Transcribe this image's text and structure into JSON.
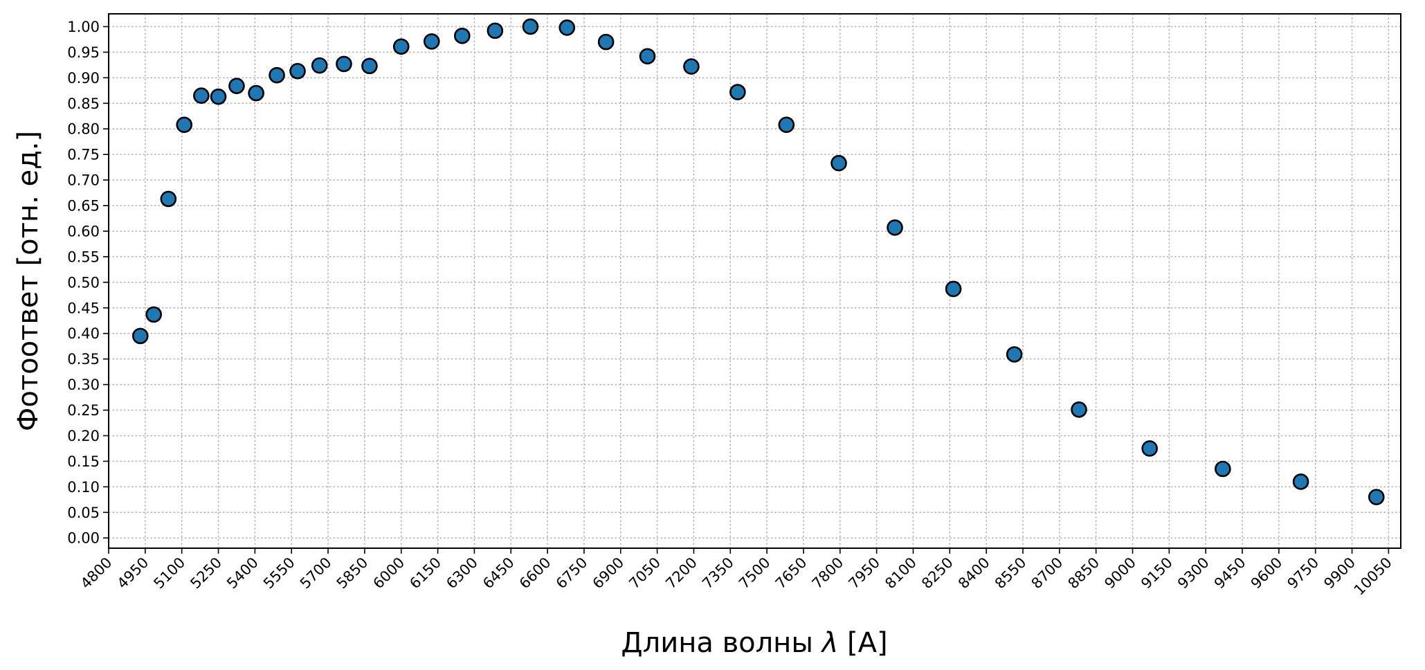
{
  "chart_data": {
    "type": "scatter",
    "title": "",
    "xlabel": "Длина волны",
    "xlabel_symbol": "λ",
    "xlabel_unit": "[A]",
    "ylabel": "Фотоответ [отн. ед.]",
    "xlim": [
      4800,
      10100
    ],
    "ylim": [
      -0.02,
      1.025
    ],
    "xticks": [
      4800,
      4950,
      5100,
      5250,
      5400,
      5550,
      5700,
      5850,
      6000,
      6150,
      6300,
      6450,
      6600,
      6750,
      6900,
      7050,
      7200,
      7350,
      7500,
      7650,
      7800,
      7950,
      8100,
      8250,
      8400,
      8550,
      8700,
      8850,
      9000,
      9150,
      9300,
      9450,
      9600,
      9750,
      9900,
      10050
    ],
    "xtick_labels": [
      "4800",
      "4950",
      "5100",
      "5250",
      "5400",
      "5550",
      "5700",
      "5850",
      "6000",
      "6150",
      "6300",
      "6450",
      "6600",
      "6750",
      "6900",
      "7050",
      "7200",
      "7350",
      "7500",
      "7650",
      "7800",
      "7950",
      "8100",
      "8250",
      "8400",
      "8550",
      "8700",
      "8850",
      "9000",
      "9150",
      "9300",
      "9450",
      "9600",
      "9750",
      "9900",
      "10050"
    ],
    "yticks": [
      0.0,
      0.05,
      0.1,
      0.15,
      0.2,
      0.25,
      0.3,
      0.35,
      0.4,
      0.45,
      0.5,
      0.55,
      0.6,
      0.65,
      0.7,
      0.75,
      0.8,
      0.85,
      0.9,
      0.95,
      1.0
    ],
    "ytick_labels": [
      "0.00",
      "0.05",
      "0.10",
      "0.15",
      "0.20",
      "0.25",
      "0.30",
      "0.35",
      "0.40",
      "0.45",
      "0.50",
      "0.55",
      "0.60",
      "0.65",
      "0.70",
      "0.75",
      "0.80",
      "0.85",
      "0.90",
      "0.95",
      "1.00"
    ],
    "grid": true,
    "marker_color": "#1f77b4",
    "marker_edge_color": "#000000",
    "x": [
      4930,
      4985,
      5045,
      5110,
      5180,
      5250,
      5325,
      5405,
      5490,
      5575,
      5665,
      5765,
      5870,
      6000,
      6125,
      6250,
      6385,
      6530,
      6680,
      6840,
      7010,
      7190,
      7380,
      7580,
      7795,
      8025,
      8265,
      8515,
      8780,
      9070,
      9370,
      9690,
      10000
    ],
    "y": [
      0.395,
      0.437,
      0.663,
      0.808,
      0.865,
      0.863,
      0.884,
      0.87,
      0.905,
      0.913,
      0.924,
      0.927,
      0.923,
      0.961,
      0.971,
      0.982,
      0.992,
      1.0,
      0.998,
      0.97,
      0.942,
      0.922,
      0.872,
      0.808,
      0.733,
      0.607,
      0.487,
      0.359,
      0.251,
      0.175,
      0.135,
      0.11,
      0.08
    ]
  }
}
